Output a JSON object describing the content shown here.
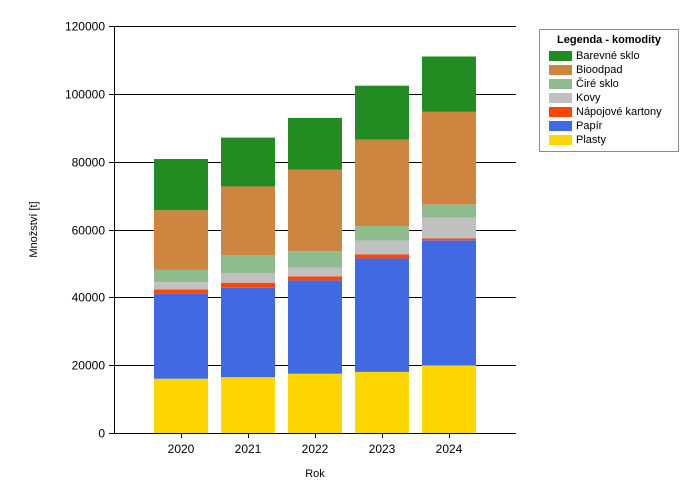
{
  "chart_data": {
    "type": "bar",
    "stacked": true,
    "categories": [
      "2020",
      "2021",
      "2022",
      "2023",
      "2024"
    ],
    "xlabel": "Rok",
    "ylabel": "Množství [t]",
    "ylim": [
      0,
      120000
    ],
    "yticks": [
      "0",
      "20000",
      "40000",
      "60000",
      "80000",
      "100000",
      "120000"
    ],
    "grid": "horizontal",
    "legend": {
      "title": "Legenda - komodity",
      "position": "top-right"
    },
    "series": [
      {
        "name": "Plasty",
        "color": "#FFD700",
        "values": [
          16000,
          16500,
          17500,
          18000,
          20000
        ]
      },
      {
        "name": "Papír",
        "color": "#4169E1",
        "values": [
          25000,
          26500,
          27500,
          33500,
          36800
        ]
      },
      {
        "name": "Nápojové kartony",
        "color": "#FF4500",
        "values": [
          1300,
          1300,
          1200,
          1200,
          600
        ]
      },
      {
        "name": "Kovy",
        "color": "#C0C0C0",
        "values": [
          2200,
          2800,
          2600,
          4000,
          6100
        ]
      },
      {
        "name": "Čiré sklo",
        "color": "#8FBC8F",
        "values": [
          3700,
          5300,
          4800,
          4300,
          3900
        ]
      },
      {
        "name": "Bioodpad",
        "color": "#CD853F",
        "values": [
          17500,
          20300,
          24100,
          25500,
          27300
        ]
      },
      {
        "name": "Barevné sklo",
        "color": "#228B22",
        "values": [
          15100,
          14400,
          15200,
          15900,
          16300
        ]
      }
    ]
  }
}
